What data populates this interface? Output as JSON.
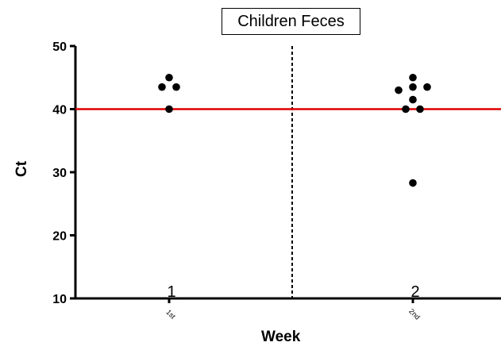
{
  "chart_data": {
    "type": "scatter",
    "title": "Children Feces",
    "xlabel": "Week",
    "ylabel": "Ct",
    "ylim": [
      10,
      50
    ],
    "yticks": [
      10,
      20,
      30,
      40,
      50
    ],
    "reference_line": {
      "y": 40,
      "color": "#dd0000"
    },
    "divider": "dashed vertical line between groups",
    "colors": {
      "points": "#000000",
      "reference": "#dd0000"
    },
    "groups": [
      {
        "label": "1",
        "tick_text": "1st",
        "points": [
          {
            "x_offset": 0,
            "y": 45
          },
          {
            "x_offset": -1,
            "y": 43.5
          },
          {
            "x_offset": 1,
            "y": 43.5
          },
          {
            "x_offset": 0,
            "y": 40
          }
        ]
      },
      {
        "label": "2",
        "tick_text": "2nd",
        "points": [
          {
            "x_offset": 0,
            "y": 45
          },
          {
            "x_offset": -2,
            "y": 43
          },
          {
            "x_offset": 0,
            "y": 43.5
          },
          {
            "x_offset": 2,
            "y": 43.5
          },
          {
            "x_offset": 0,
            "y": 41.5
          },
          {
            "x_offset": -1,
            "y": 40
          },
          {
            "x_offset": 1,
            "y": 40
          },
          {
            "x_offset": 0,
            "y": 28.3
          }
        ]
      }
    ]
  }
}
